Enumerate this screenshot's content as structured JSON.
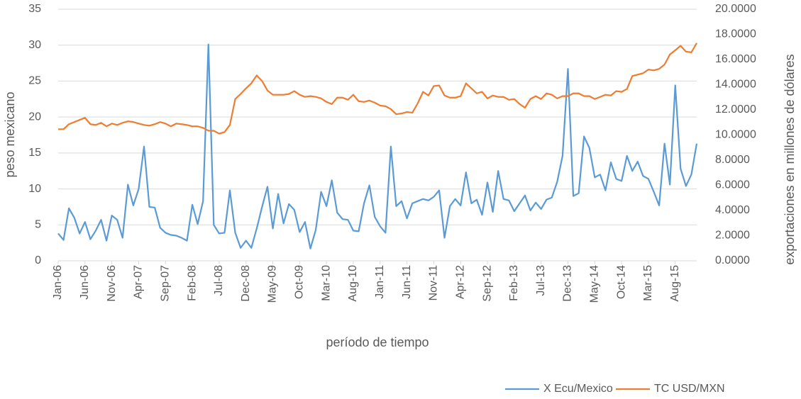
{
  "chart_data": {
    "type": "line",
    "categories": [
      "Jan-06",
      null,
      null,
      null,
      null,
      "Jun-06",
      null,
      null,
      null,
      null,
      "Nov-06",
      null,
      null,
      null,
      null,
      "Apr-07",
      null,
      null,
      null,
      null,
      "Sep-07",
      null,
      null,
      null,
      null,
      "Feb-08",
      null,
      null,
      null,
      null,
      "Jul-08",
      null,
      null,
      null,
      null,
      "Dec-08",
      null,
      null,
      null,
      null,
      "May-09",
      null,
      null,
      null,
      null,
      "Oct-09",
      null,
      null,
      null,
      null,
      "Mar-10",
      null,
      null,
      null,
      null,
      "Aug-10",
      null,
      null,
      null,
      null,
      "Jan-11",
      null,
      null,
      null,
      null,
      "Jun-11",
      null,
      null,
      null,
      null,
      "Nov-11",
      null,
      null,
      null,
      null,
      "Apr-12",
      null,
      null,
      null,
      null,
      "Sep-12",
      null,
      null,
      null,
      null,
      "Feb-13",
      null,
      null,
      null,
      null,
      "Jul-13",
      null,
      null,
      null,
      null,
      "Dec-13",
      null,
      null,
      null,
      null,
      "May-14",
      null,
      null,
      null,
      null,
      "Oct-14",
      null,
      null,
      null,
      null,
      "Mar-15",
      null,
      null,
      null,
      null,
      "Aug-15",
      null,
      null,
      null,
      null
    ],
    "series": [
      {
        "name": "X Ecu/Mexico",
        "color": "#5b9bd5",
        "values": [
          3.8,
          2.9,
          7.3,
          6.0,
          3.8,
          5.4,
          3.0,
          4.2,
          5.7,
          2.8,
          6.3,
          5.7,
          3.2,
          10.6,
          7.7,
          10.0,
          15.9,
          7.5,
          7.4,
          4.6,
          3.9,
          3.6,
          3.5,
          3.2,
          2.8,
          7.8,
          5.1,
          8.3,
          30.1,
          5.0,
          3.8,
          3.9,
          9.8,
          3.9,
          1.8,
          2.8,
          1.8,
          4.5,
          7.5,
          10.3,
          4.5,
          9.3,
          5.2,
          7.9,
          7.1,
          4.0,
          5.4,
          1.7,
          4.3,
          9.6,
          7.6,
          11.2,
          6.7,
          5.8,
          5.7,
          4.2,
          4.1,
          8.0,
          10.5,
          6.1,
          4.8,
          3.9,
          15.9,
          7.6,
          8.3,
          5.9,
          8.0,
          8.3,
          8.6,
          8.4,
          8.9,
          9.8,
          3.2,
          7.6,
          8.6,
          7.7,
          12.3,
          8.0,
          8.5,
          6.4,
          10.9,
          6.8,
          12.5,
          8.6,
          8.4,
          6.9,
          8.0,
          9.1,
          7.0,
          8.1,
          7.2,
          8.5,
          8.8,
          11.0,
          14.6,
          26.7,
          9.0,
          9.4,
          17.3,
          15.7,
          11.6,
          12.0,
          9.8,
          13.7,
          11.4,
          11.1,
          14.6,
          12.5,
          13.8,
          11.8,
          11.4,
          9.6,
          7.7,
          16.3,
          10.6,
          24.4,
          12.8,
          10.4,
          12.0,
          16.3
        ]
      },
      {
        "name": "TC USD/MXN",
        "color": "#ed7d31",
        "axis": "y2",
        "values": [
          10.46,
          10.46,
          10.86,
          11.03,
          11.2,
          11.37,
          10.86,
          10.8,
          10.97,
          10.69,
          10.91,
          10.8,
          10.97,
          11.09,
          11.03,
          10.91,
          10.8,
          10.74,
          10.86,
          11.03,
          10.91,
          10.69,
          10.91,
          10.86,
          10.8,
          10.69,
          10.69,
          10.57,
          10.34,
          10.34,
          10.11,
          10.23,
          10.8,
          12.86,
          13.26,
          13.71,
          14.11,
          14.74,
          14.29,
          13.54,
          13.2,
          13.2,
          13.2,
          13.26,
          13.49,
          13.2,
          13.03,
          13.09,
          13.03,
          12.91,
          12.63,
          12.46,
          12.97,
          12.97,
          12.8,
          13.2,
          12.69,
          12.63,
          12.74,
          12.57,
          12.34,
          12.29,
          12.06,
          11.66,
          11.71,
          11.83,
          11.77,
          12.51,
          13.43,
          13.14,
          13.89,
          13.94,
          13.14,
          12.97,
          12.97,
          13.09,
          14.11,
          13.71,
          13.31,
          13.43,
          12.91,
          13.14,
          13.03,
          13.03,
          12.8,
          12.86,
          12.46,
          12.17,
          12.86,
          13.09,
          12.86,
          13.31,
          13.2,
          12.91,
          13.09,
          13.09,
          13.31,
          13.31,
          13.09,
          13.09,
          12.86,
          13.03,
          13.2,
          13.14,
          13.49,
          13.43,
          13.66,
          14.69,
          14.8,
          14.91,
          15.2,
          15.14,
          15.26,
          15.6,
          16.4,
          16.74,
          17.09,
          16.63,
          16.57,
          17.31
        ]
      }
    ],
    "ylabel": "peso mexicano",
    "y2label": "exportaciones en millones de dólares",
    "xlabel": "período de tiempo",
    "ylim": [
      0,
      35
    ],
    "yticks": [
      0,
      5,
      10,
      15,
      20,
      25,
      30,
      35
    ],
    "y2lim": [
      0,
      20
    ],
    "y2ticks": [
      {
        "value": 0,
        "label": "0.0000"
      },
      {
        "value": 2,
        "label": "2.0000"
      },
      {
        "value": 4,
        "label": "4.0000"
      },
      {
        "value": 6,
        "label": "6.0000"
      },
      {
        "value": 8,
        "label": "8.0000"
      },
      {
        "value": 10,
        "label": "10.0000"
      },
      {
        "value": 12,
        "label": "12.0000"
      },
      {
        "value": 14,
        "label": "14.0000"
      },
      {
        "value": 16,
        "label": "16.0000"
      },
      {
        "value": 18,
        "label": "18.0000"
      },
      {
        "value": 20,
        "label": "20.0000"
      }
    ],
    "grid": true,
    "legend": "bottom"
  }
}
